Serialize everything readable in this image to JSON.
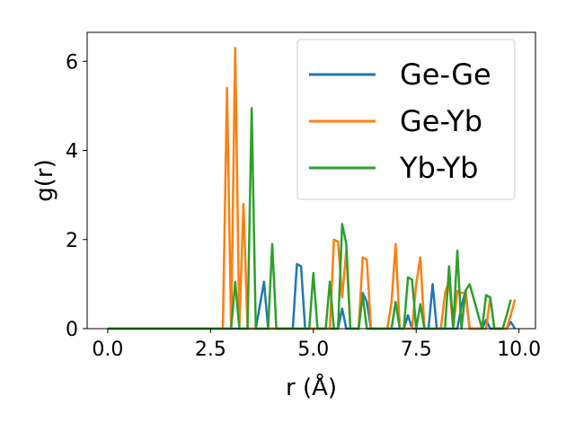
{
  "chart_data": {
    "type": "line",
    "title": "",
    "xlabel": "r (Å)",
    "ylabel": "g(r)",
    "xlim": [
      -0.5,
      10.4
    ],
    "ylim": [
      0,
      6.65
    ],
    "xticks": [
      0.0,
      2.5,
      5.0,
      7.5,
      10.0
    ],
    "xtick_labels": [
      "0.0",
      "2.5",
      "5.0",
      "7.5",
      "10.0"
    ],
    "yticks": [
      0,
      2,
      4,
      6
    ],
    "ytick_labels": [
      "0",
      "2",
      "4",
      "6"
    ],
    "grid": false,
    "legend": "upper right",
    "series": [
      {
        "name": "Ge-Ge",
        "color": "#1f77b4",
        "x": [
          0.0,
          3.6,
          3.8,
          3.9,
          4.0,
          4.5,
          4.6,
          4.7,
          4.8,
          5.6,
          5.7,
          5.8,
          6.1,
          6.2,
          6.3,
          6.4,
          7.2,
          7.3,
          7.4,
          7.8,
          7.9,
          8.0,
          8.1,
          8.5,
          8.6,
          8.7,
          8.8,
          9.1,
          9.2,
          9.3,
          9.7,
          9.8,
          9.9
        ],
        "y": [
          0,
          0,
          1.05,
          0,
          0,
          0,
          1.45,
          1.4,
          0,
          0,
          0.45,
          0,
          0,
          0.8,
          0.6,
          0,
          0,
          0.3,
          0,
          0,
          1.0,
          0,
          0,
          0,
          0.5,
          0.85,
          0,
          0,
          0.2,
          0,
          0,
          0.15,
          0
        ]
      },
      {
        "name": "Ge-Yb",
        "color": "#ff7f0e",
        "x": [
          0.0,
          2.8,
          2.9,
          3.0,
          3.1,
          3.2,
          3.3,
          3.4,
          5.4,
          5.5,
          5.6,
          5.7,
          5.8,
          5.9,
          6.1,
          6.2,
          6.3,
          6.4,
          6.8,
          6.9,
          7.0,
          7.1,
          7.4,
          7.5,
          7.6,
          7.7,
          8.1,
          8.2,
          8.3,
          8.4,
          8.5,
          8.6,
          8.7,
          8.8,
          8.9,
          9.2,
          9.3,
          9.4,
          9.7,
          9.8,
          9.9
        ],
        "y": [
          0,
          0,
          5.4,
          0,
          6.3,
          0,
          2.8,
          0,
          0,
          2.0,
          1.95,
          0.7,
          1.75,
          0,
          0,
          1.6,
          1.55,
          0,
          0,
          0.6,
          1.9,
          0,
          0,
          1.0,
          1.6,
          0,
          0,
          0.8,
          1.05,
          0,
          0.85,
          0.8,
          0.8,
          0,
          0,
          0,
          0.7,
          0,
          0,
          0.3,
          0.65
        ]
      },
      {
        "name": "Yb-Yb",
        "color": "#2ca02c",
        "x": [
          0.0,
          3.0,
          3.1,
          3.2,
          3.4,
          3.5,
          3.6,
          3.9,
          4.0,
          4.1,
          4.9,
          5.0,
          5.1,
          5.3,
          5.4,
          5.5,
          5.6,
          5.7,
          5.8,
          5.9,
          6.0,
          6.1,
          6.2,
          6.3,
          6.4,
          6.8,
          6.9,
          7.0,
          7.1,
          7.2,
          7.3,
          7.4,
          7.5,
          7.6,
          7.7,
          8.1,
          8.2,
          8.3,
          8.4,
          8.5,
          8.6,
          8.7,
          8.8,
          9.1,
          9.2,
          9.3,
          9.4,
          9.5,
          9.6,
          9.7,
          9.8
        ],
        "y": [
          0,
          0,
          1.05,
          0,
          0,
          4.95,
          0,
          0,
          1.9,
          0,
          0,
          1.25,
          0,
          0,
          1.05,
          0,
          0,
          2.35,
          1.9,
          0,
          0,
          0,
          0.75,
          0,
          0,
          0,
          0,
          0.6,
          0,
          0,
          1.15,
          1.1,
          0,
          0.55,
          0,
          0,
          0,
          1.4,
          0,
          1.75,
          0,
          0.85,
          1.0,
          0,
          0.75,
          0.7,
          0,
          0,
          0,
          0.3,
          0.65
        ]
      }
    ]
  }
}
